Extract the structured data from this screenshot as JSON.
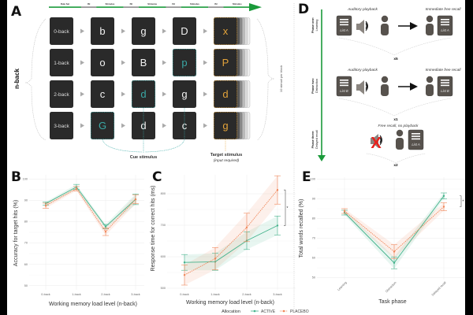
{
  "colors": {
    "active": "#45b38c",
    "placebo": "#f0875a",
    "cue": "#3aa9a6",
    "target": "#e3a33a",
    "box": "#2a2a2a",
    "timeline": "#1a9a3a",
    "icon": "#57524d",
    "cross": "#e8211c"
  },
  "panel_a": {
    "letter": "A",
    "side_label": "n-back",
    "timeline": [
      "Rule Set",
      "ISI",
      "Stimulus",
      "ISI",
      "Stimulus",
      "ISI",
      "Stimulus",
      "ISI",
      "Stimulus"
    ],
    "rows": [
      {
        "label": "0-back",
        "stimuli": [
          "b",
          "g",
          "D",
          "x"
        ],
        "cue_index": null
      },
      {
        "label": "1-back",
        "stimuli": [
          "o",
          "B",
          "p",
          "P"
        ],
        "cue_index": 2
      },
      {
        "label": "2-back",
        "stimuli": [
          "c",
          "d",
          "g",
          "d"
        ],
        "cue_index": 1
      },
      {
        "label": "3-back",
        "stimuli": [
          "G",
          "d",
          "c",
          "g"
        ],
        "cue_index": 0
      }
    ],
    "cue_label": "Cue stimulus",
    "target_label": "Target stimulus",
    "target_sublabel": "(input required)",
    "block_label": "10 stimuli per block"
  },
  "panel_d": {
    "letter": "D",
    "phases": [
      {
        "title": "Phase one:",
        "name": "Learning",
        "left_caption": "Auditory playback",
        "right_caption": "Immediate free recall",
        "list_in": "List A",
        "list_out": "List A",
        "repeat": "x5",
        "playback": true
      },
      {
        "title": "Phase two:",
        "name": "Distraction",
        "left_caption": "Auditory playback",
        "right_caption": "Immediate free recall",
        "list_in": "List B",
        "list_out": "List B",
        "repeat": "x1",
        "playback": true
      },
      {
        "title": "Phase three:",
        "name": "Delayed recall",
        "left_caption": "Free recall, no playback",
        "right_caption": "",
        "list_in": "",
        "list_out": "List A",
        "repeat": "x2",
        "playback": false
      }
    ]
  },
  "legend": {
    "title": "Allocation",
    "items": [
      "ACTIVE",
      "PLACEBO"
    ]
  },
  "chart_data": [
    {
      "panel": "B",
      "type": "line",
      "categories": [
        "0-back",
        "1-back",
        "2-back",
        "3-back"
      ],
      "xlabel": "Working memory load level (n-back)",
      "ylabel": "Accuracy for target hits (%)",
      "yticks": [
        50,
        60,
        70,
        80,
        90,
        100
      ],
      "ylim": [
        48,
        102
      ],
      "grid": true,
      "series": [
        {
          "name": "ACTIVE",
          "values": [
            88.5,
            96.3,
            77.7,
            90.5
          ],
          "error": [
            0.8,
            1.2,
            1.0,
            2.5
          ]
        },
        {
          "name": "PLACEBO",
          "values": [
            87.5,
            95.5,
            75.3,
            90.5
          ],
          "error": [
            1.2,
            1.0,
            1.8,
            2.0
          ]
        }
      ]
    },
    {
      "panel": "C",
      "type": "line",
      "categories": [
        "0-back",
        "1-back",
        "2-back",
        "3-back"
      ],
      "xlabel": "Working memory load level (n-back)",
      "ylabel": "Response time for correct hits (ms)",
      "yticks": [
        500,
        600,
        700,
        800
      ],
      "ylim": [
        495,
        860
      ],
      "grid": true,
      "series": [
        {
          "name": "ACTIVE",
          "values": [
            582,
            584,
            651,
            699
          ],
          "error": [
            25,
            27,
            28,
            30
          ]
        },
        {
          "name": "PLACEBO",
          "values": [
            542,
            594,
            693,
            812
          ],
          "error": [
            32,
            35,
            45,
            45
          ]
        }
      ],
      "annotation": "*"
    },
    {
      "panel": "E",
      "type": "line",
      "categories": [
        "Learning",
        "Distraction",
        "Delayed recall"
      ],
      "xlabel": "Task phase",
      "ylabel": "Total words recalled (%)",
      "yticks": [
        50,
        60,
        70,
        80,
        90,
        100
      ],
      "ylim": [
        49,
        101
      ],
      "grid": true,
      "series": [
        {
          "name": "ACTIVE",
          "values": [
            83,
            57.5,
            91.5
          ],
          "error": [
            1.2,
            3,
            1.5
          ]
        },
        {
          "name": "PLACEBO",
          "values": [
            83.8,
            63.2,
            86
          ],
          "error": [
            1.2,
            3.5,
            2
          ]
        }
      ],
      "annotation": "*"
    }
  ]
}
